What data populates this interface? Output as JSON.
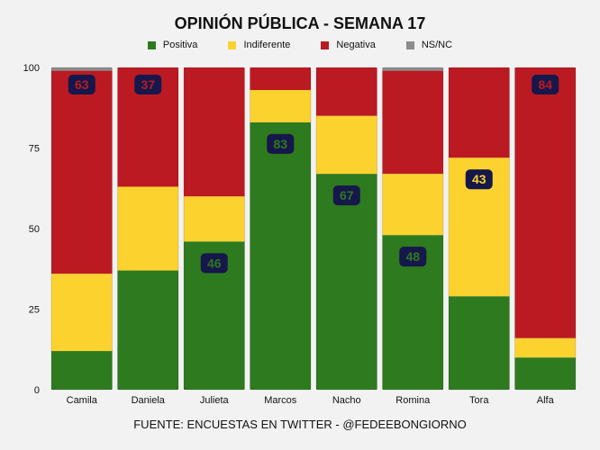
{
  "chart_data": {
    "type": "bar",
    "stacked": true,
    "title": "OPINIÓN PÚBLICA - SEMANA 17",
    "source": "FUENTE: ENCUESTAS EN TWITTER - @FEDEEBONGIORNO",
    "categories": [
      "Camila",
      "Daniela",
      "Julieta",
      "Marcos",
      "Nacho",
      "Romina",
      "Tora",
      "Alfa"
    ],
    "series": [
      {
        "name": "Positiva",
        "color": "#2d7a1f",
        "values": [
          12,
          37,
          46,
          83,
          67,
          48,
          29,
          10
        ]
      },
      {
        "name": "Indiferente",
        "color": "#fcd22f",
        "values": [
          24,
          26,
          14,
          10,
          18,
          19,
          43,
          6
        ]
      },
      {
        "name": "Negativa",
        "color": "#bb1a22",
        "values": [
          63,
          37,
          40,
          7,
          15,
          32,
          28,
          84
        ]
      },
      {
        "name": "NS/NC",
        "color": "#8c8c8c",
        "values": [
          1,
          0,
          0,
          0,
          0,
          1,
          0,
          0
        ]
      }
    ],
    "highlight": [
      {
        "category": "Camila",
        "series": "Negativa",
        "label": "63"
      },
      {
        "category": "Daniela",
        "series": "Negativa",
        "label": "37"
      },
      {
        "category": "Julieta",
        "series": "Positiva",
        "label": "46"
      },
      {
        "category": "Marcos",
        "series": "Positiva",
        "label": "83"
      },
      {
        "category": "Nacho",
        "series": "Positiva",
        "label": "67"
      },
      {
        "category": "Romina",
        "series": "Positiva",
        "label": "48"
      },
      {
        "category": "Tora",
        "series": "Indiferente",
        "label": "43"
      },
      {
        "category": "Alfa",
        "series": "Negativa",
        "label": "84"
      }
    ],
    "ylim": [
      0,
      100
    ],
    "yticks": [
      0,
      25,
      50,
      75,
      100
    ],
    "badge_bg": "#16174a",
    "grid": false,
    "legend_position": "top"
  }
}
